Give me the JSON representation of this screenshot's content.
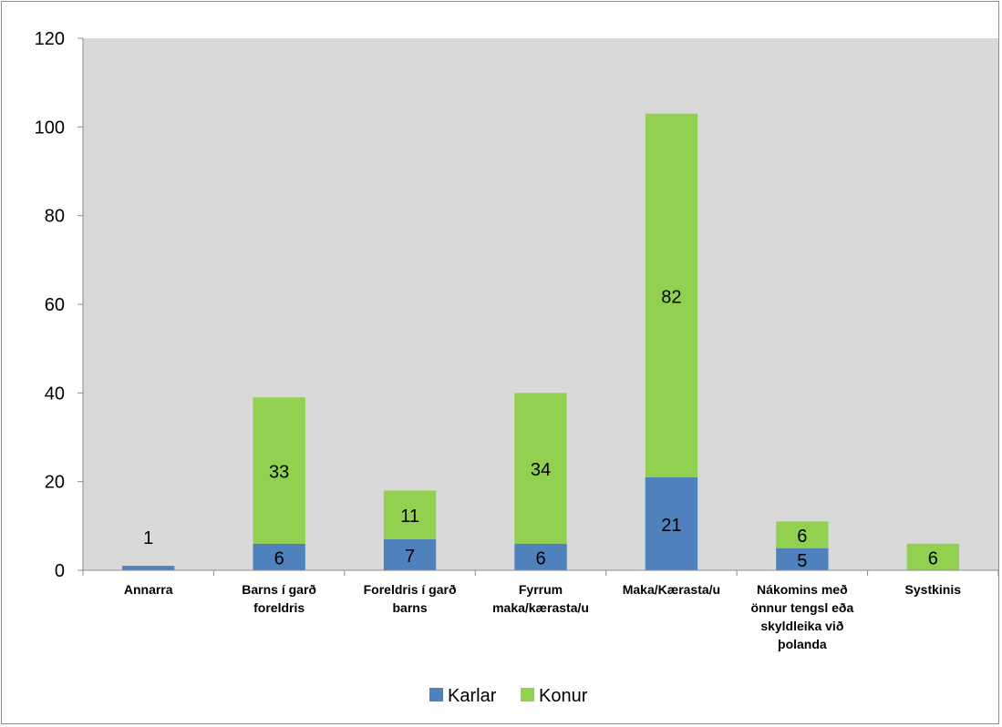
{
  "chart_data": {
    "type": "bar",
    "stacked": true,
    "categories": [
      [
        "Annarra"
      ],
      [
        "Barns í garð",
        "foreldris"
      ],
      [
        "Foreldris í garð",
        "barns"
      ],
      [
        "Fyrrum",
        "maka/kærasta/u"
      ],
      [
        "Maka/Kærasta/u"
      ],
      [
        "Nákomins með",
        "önnur tengsl eða",
        "skyldleika við",
        "þolanda"
      ],
      [
        "Systkinis"
      ]
    ],
    "series": [
      {
        "name": "Karlar",
        "color": "#4f81bd",
        "values": [
          1,
          6,
          7,
          6,
          21,
          5,
          0
        ],
        "labels": [
          "1",
          "6",
          "7",
          "6",
          "21",
          "5",
          ""
        ]
      },
      {
        "name": "Konur",
        "color": "#92d050",
        "values": [
          0,
          33,
          11,
          34,
          82,
          6,
          6
        ],
        "labels": [
          "",
          "33",
          "11",
          "34",
          "82",
          "6",
          "6"
        ]
      }
    ],
    "ylim": [
      0,
      120
    ],
    "yticks": [
      0,
      20,
      40,
      60,
      80,
      100,
      120
    ],
    "plot_background": "#d9d9d9",
    "grid": false,
    "legend_position": "bottom"
  }
}
